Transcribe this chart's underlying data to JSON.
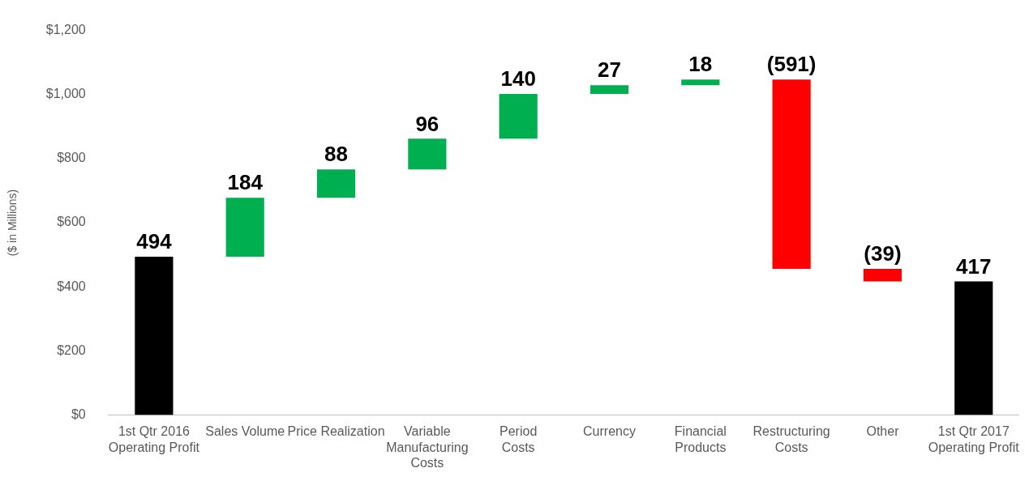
{
  "chart_data": {
    "type": "bar",
    "ylabel": "($ in Millions)",
    "categories": [
      "1st Qtr 2016\nOperating Profit",
      "Sales Volume",
      "Price Realization",
      "Variable\nManufacturing\nCosts",
      "Period\nCosts",
      "Currency",
      "Financial\nProducts",
      "Restructuring\nCosts",
      "Other",
      "1st Qtr 2017\nOperating Profit"
    ],
    "values": [
      494,
      184,
      88,
      96,
      140,
      27,
      18,
      -591,
      -39,
      417
    ],
    "base": [
      0,
      494,
      678,
      766,
      862,
      1002,
      1029,
      1047,
      456,
      0
    ],
    "colors": [
      "#000000",
      "#00b050",
      "#00b050",
      "#00b050",
      "#00b050",
      "#00b050",
      "#00b050",
      "#ff0000",
      "#ff0000",
      "#000000"
    ],
    "value_labels": [
      "494",
      "184",
      "88",
      "96",
      "140",
      "27",
      "18",
      "(591)",
      "(39)",
      "417"
    ],
    "ylim": [
      0,
      1200
    ],
    "yticks": [
      {
        "value": 0,
        "label": "$0"
      },
      {
        "value": 200,
        "label": "$200"
      },
      {
        "value": 400,
        "label": "$400"
      },
      {
        "value": 600,
        "label": "$600"
      },
      {
        "value": 800,
        "label": "$800"
      },
      {
        "value": 1000,
        "label": "$1,000"
      },
      {
        "value": 1200,
        "label": "$1,200"
      }
    ]
  }
}
